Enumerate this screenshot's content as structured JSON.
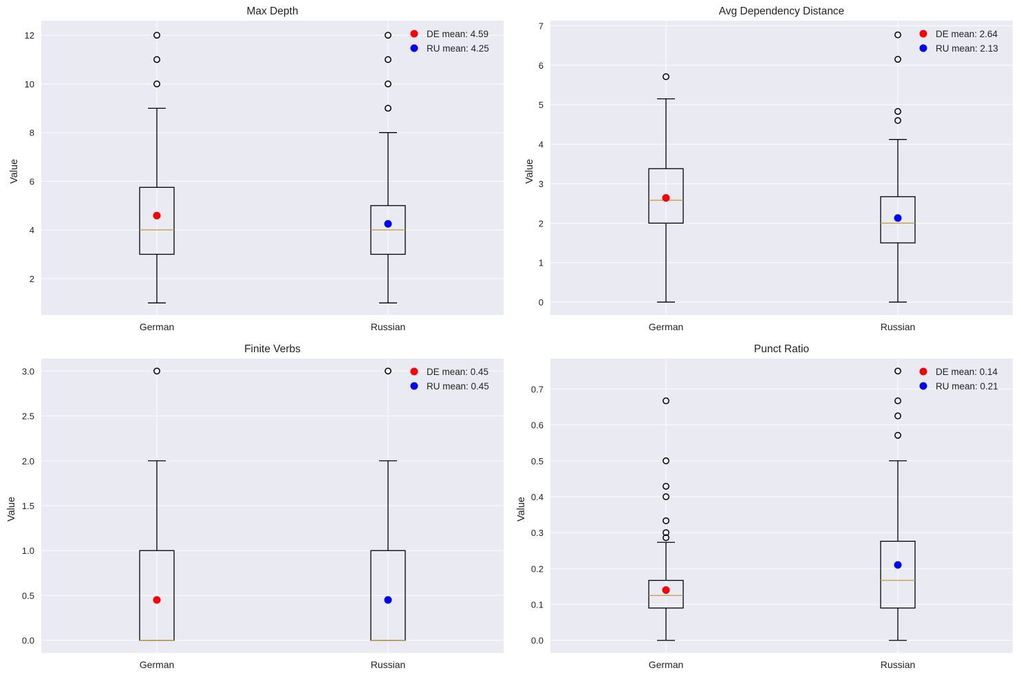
{
  "chart_data": [
    {
      "type": "box",
      "title": "Max Depth",
      "ylabel": "Value",
      "ylim": [
        0.5,
        12.6
      ],
      "yticks": [
        2,
        4,
        6,
        8,
        10,
        12
      ],
      "ytick_labels": [
        "2",
        "4",
        "6",
        "8",
        "10",
        "12"
      ],
      "categories": [
        "German",
        "Russian"
      ],
      "boxes": [
        {
          "q1": 3,
          "median": 4,
          "q3": 5.75,
          "whisker_low": 1,
          "whisker_high": 9,
          "outliers": [
            10,
            11,
            12
          ],
          "mean": 4.59,
          "mean_color": "#ff0000"
        },
        {
          "q1": 3,
          "median": 4,
          "q3": 5,
          "whisker_low": 1,
          "whisker_high": 8,
          "outliers": [
            9,
            10,
            11,
            12
          ],
          "mean": 4.25,
          "mean_color": "#0000ff"
        }
      ],
      "legend": [
        {
          "label": "DE mean: 4.59",
          "color": "#ff0000"
        },
        {
          "label": "RU mean: 4.25",
          "color": "#0000ff"
        }
      ]
    },
    {
      "type": "box",
      "title": "Avg Dependency Distance",
      "ylabel": "Value",
      "ylim": [
        -0.33,
        7.13
      ],
      "yticks": [
        0,
        1,
        2,
        3,
        4,
        5,
        6,
        7
      ],
      "ytick_labels": [
        "0",
        "1",
        "2",
        "3",
        "4",
        "5",
        "6",
        "7"
      ],
      "categories": [
        "German",
        "Russian"
      ],
      "boxes": [
        {
          "q1": 2,
          "median": 2.58,
          "q3": 3.38,
          "whisker_low": 0,
          "whisker_high": 5.15,
          "outliers": [
            5.71
          ],
          "mean": 2.64,
          "mean_color": "#ff0000"
        },
        {
          "q1": 1.5,
          "median": 2,
          "q3": 2.67,
          "whisker_low": 0,
          "whisker_high": 4.12,
          "outliers": [
            4.6,
            4.83,
            6.15,
            6.77
          ],
          "mean": 2.13,
          "mean_color": "#0000ff"
        }
      ],
      "legend": [
        {
          "label": "DE mean: 2.64",
          "color": "#ff0000"
        },
        {
          "label": "RU mean: 2.13",
          "color": "#0000ff"
        }
      ]
    },
    {
      "type": "box",
      "title": "Finite Verbs",
      "ylabel": "Value",
      "ylim": [
        -0.14,
        3.14
      ],
      "yticks": [
        0,
        0.5,
        1,
        1.5,
        2,
        2.5,
        3
      ],
      "ytick_labels": [
        "0.0",
        "0.5",
        "1.0",
        "1.5",
        "2.0",
        "2.5",
        "3.0"
      ],
      "categories": [
        "German",
        "Russian"
      ],
      "boxes": [
        {
          "q1": 0,
          "median": 0,
          "q3": 1,
          "whisker_low": 0,
          "whisker_high": 2,
          "outliers": [
            3
          ],
          "mean": 0.45,
          "mean_color": "#ff0000"
        },
        {
          "q1": 0,
          "median": 0,
          "q3": 1,
          "whisker_low": 0,
          "whisker_high": 2,
          "outliers": [
            3
          ],
          "mean": 0.45,
          "mean_color": "#0000ff"
        }
      ],
      "legend": [
        {
          "label": "DE mean: 0.45",
          "color": "#ff0000"
        },
        {
          "label": "RU mean: 0.45",
          "color": "#0000ff"
        }
      ]
    },
    {
      "type": "box",
      "title": "Punct Ratio",
      "ylabel": "Value",
      "ylim": [
        -0.035,
        0.785
      ],
      "yticks": [
        0,
        0.1,
        0.2,
        0.3,
        0.4,
        0.5,
        0.6,
        0.7
      ],
      "ytick_labels": [
        "0.0",
        "0.1",
        "0.2",
        "0.3",
        "0.4",
        "0.5",
        "0.6",
        "0.7"
      ],
      "categories": [
        "German",
        "Russian"
      ],
      "boxes": [
        {
          "q1": 0.09,
          "median": 0.125,
          "q3": 0.167,
          "whisker_low": 0,
          "whisker_high": 0.273,
          "outliers": [
            0.286,
            0.3,
            0.333,
            0.4,
            0.429,
            0.5,
            0.667
          ],
          "mean": 0.14,
          "mean_color": "#ff0000"
        },
        {
          "q1": 0.09,
          "median": 0.167,
          "q3": 0.276,
          "whisker_low": 0,
          "whisker_high": 0.5,
          "outliers": [
            0.571,
            0.625,
            0.667,
            0.75
          ],
          "mean": 0.21,
          "mean_color": "#0000ff"
        }
      ],
      "legend": [
        {
          "label": "DE mean: 0.14",
          "color": "#ff0000"
        },
        {
          "label": "RU mean: 0.21",
          "color": "#0000ff"
        }
      ]
    }
  ],
  "colors": {
    "axes_bg": "#eaeaf2",
    "grid": "#ffffff",
    "box": "#000000",
    "median": "#c8a040",
    "text": "#222222"
  }
}
